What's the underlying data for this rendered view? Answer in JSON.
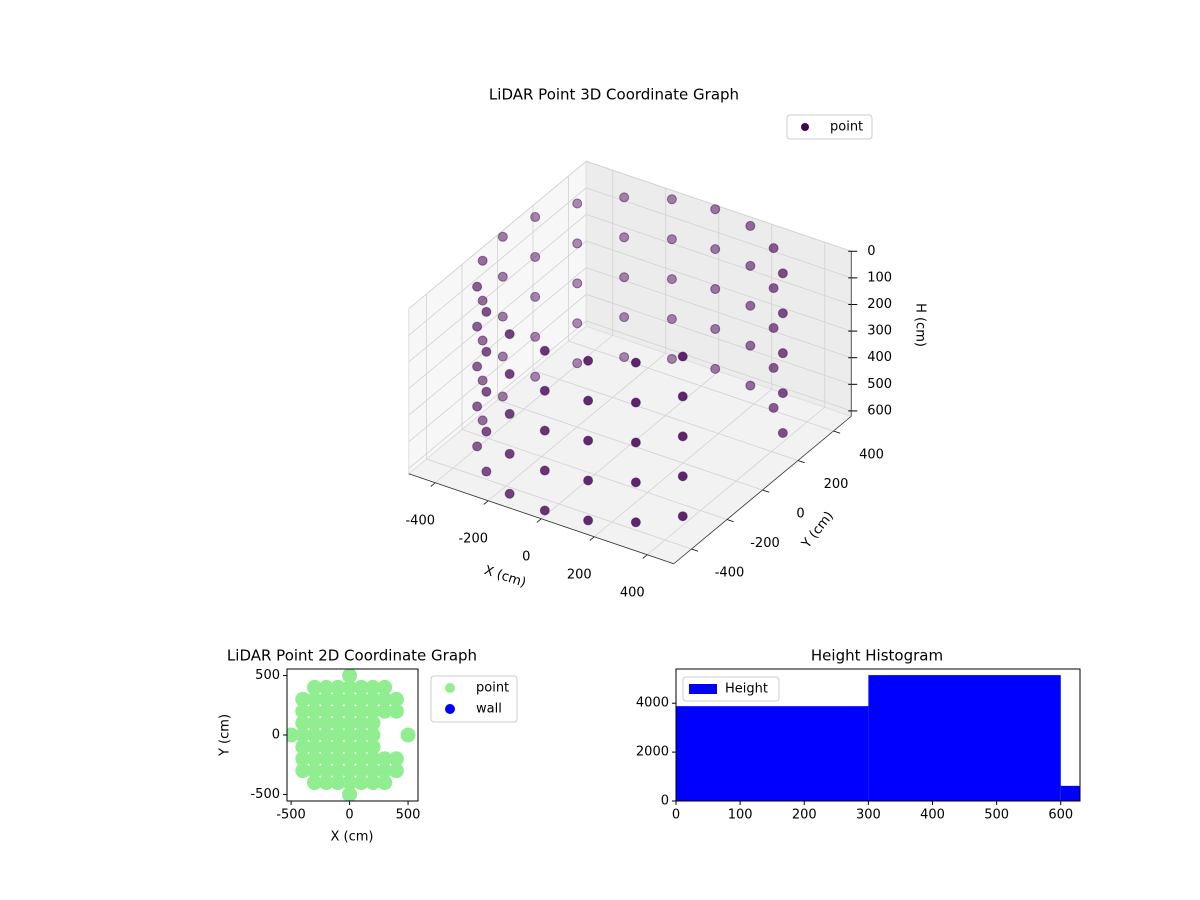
{
  "chart_data": [
    {
      "type": "scatter3d",
      "title": "LiDAR Point 3D Coordinate Graph",
      "xlabel": "X (cm)",
      "ylabel": "Y (cm)",
      "zlabel": "H (cm)",
      "series": [
        {
          "name": "point",
          "color": "#440154",
          "x": [
            388,
            282,
            148,
            0,
            -148,
            -282,
            -388,
            -457,
            -480,
            -457,
            -388,
            -282,
            -148,
            0,
            148,
            282,
            388,
            388,
            282,
            148,
            0,
            -148,
            -282,
            -388,
            -457,
            -480,
            -457,
            -388,
            -282,
            -148,
            0,
            148,
            282,
            388,
            388,
            282,
            148,
            0,
            -148,
            -282,
            -388,
            -457,
            -480,
            -457,
            -388,
            -282,
            -148,
            0,
            148,
            282,
            388,
            388,
            282,
            148,
            0,
            -148,
            -282,
            -388,
            -457,
            -480,
            -457,
            -388,
            -282,
            -148,
            0,
            148,
            282,
            388,
            388,
            282,
            148,
            0,
            -148,
            -282,
            -388,
            -457,
            -480,
            -457,
            -388,
            -282,
            -148,
            0,
            148,
            282,
            388
          ],
          "y": [
            282,
            388,
            457,
            480,
            457,
            388,
            282,
            148,
            0,
            -148,
            -282,
            -388,
            -457,
            -480,
            -457,
            -388,
            -282,
            282,
            388,
            457,
            480,
            457,
            388,
            282,
            148,
            0,
            -148,
            -282,
            -388,
            -457,
            -480,
            -457,
            -388,
            -282,
            282,
            388,
            457,
            480,
            457,
            388,
            282,
            148,
            0,
            -148,
            -282,
            -388,
            -457,
            -480,
            -457,
            -388,
            -282,
            282,
            388,
            457,
            480,
            457,
            388,
            282,
            148,
            0,
            -148,
            -282,
            -388,
            -457,
            -480,
            -457,
            -388,
            -282,
            282,
            388,
            457,
            480,
            457,
            388,
            282,
            148,
            0,
            -148,
            -282,
            -388,
            -457,
            -480,
            -457,
            -388,
            -282
          ],
          "z": [
            0,
            0,
            0,
            0,
            0,
            0,
            0,
            0,
            0,
            0,
            0,
            0,
            0,
            0,
            0,
            0,
            0,
            150,
            150,
            150,
            150,
            150,
            150,
            150,
            150,
            150,
            150,
            150,
            150,
            150,
            150,
            150,
            150,
            150,
            300,
            300,
            300,
            300,
            300,
            300,
            300,
            300,
            300,
            300,
            300,
            300,
            300,
            300,
            300,
            300,
            300,
            450,
            450,
            450,
            450,
            450,
            450,
            450,
            450,
            450,
            450,
            450,
            450,
            450,
            450,
            450,
            450,
            450,
            600,
            600,
            600,
            600,
            600,
            600,
            600,
            600,
            600,
            600,
            600,
            600,
            600,
            600,
            600,
            600,
            600
          ]
        }
      ],
      "xlim": [
        -500,
        500
      ],
      "ylim": [
        -500,
        500
      ],
      "zlim": [
        0,
        620
      ],
      "zinvert": true,
      "xticks": [
        -400,
        -200,
        0,
        200,
        400
      ],
      "yticks": [
        -400,
        -200,
        0,
        200,
        400
      ],
      "zticks": [
        0,
        100,
        200,
        300,
        400,
        500,
        600
      ],
      "grid": true,
      "legend": "upper right"
    },
    {
      "type": "scatter",
      "title": "LiDAR Point 2D Coordinate Graph",
      "xlabel": "X (cm)",
      "ylabel": "Y (cm)",
      "series": [
        {
          "name": "point",
          "color": "#90ee90",
          "x": [
            0,
            -300,
            -200,
            -100,
            0,
            100,
            200,
            300,
            -400,
            -300,
            -200,
            -100,
            0,
            100,
            200,
            300,
            400,
            -400,
            -300,
            -200,
            -100,
            0,
            100,
            200,
            300,
            400,
            -400,
            -300,
            -200,
            -100,
            0,
            100,
            200,
            -500,
            -400,
            -300,
            -200,
            -100,
            0,
            100,
            200,
            500,
            -400,
            -300,
            -200,
            -100,
            0,
            100,
            200,
            -400,
            -300,
            -200,
            -100,
            0,
            100,
            200,
            300,
            400,
            -400,
            -300,
            -200,
            -100,
            0,
            100,
            200,
            300,
            400,
            -300,
            -200,
            -100,
            0,
            100,
            200,
            300,
            0
          ],
          "y": [
            500,
            400,
            400,
            400,
            400,
            400,
            400,
            400,
            300,
            300,
            300,
            300,
            300,
            300,
            300,
            300,
            300,
            200,
            200,
            200,
            200,
            200,
            200,
            200,
            200,
            200,
            100,
            100,
            100,
            100,
            100,
            100,
            100,
            0,
            0,
            0,
            0,
            0,
            0,
            0,
            0,
            0,
            -100,
            -100,
            -100,
            -100,
            -100,
            -100,
            -100,
            -200,
            -200,
            -200,
            -200,
            -200,
            -200,
            -200,
            -200,
            -200,
            -300,
            -300,
            -300,
            -300,
            -300,
            -300,
            -300,
            -300,
            -300,
            -400,
            -400,
            -400,
            -400,
            -400,
            -400,
            -400,
            -500
          ]
        },
        {
          "name": "wall",
          "color": "#0000ff",
          "x": [],
          "y": []
        }
      ],
      "xlim": [
        -535,
        585
      ],
      "ylim": [
        -555,
        555
      ],
      "xticks": [
        -500,
        0,
        500
      ],
      "yticks": [
        -500,
        0,
        500
      ],
      "legend": "outside upper right"
    },
    {
      "type": "histogram",
      "title": "Height Histogram",
      "name": "Height",
      "color": "#0000ff",
      "bins": [
        0,
        300,
        600,
        630
      ],
      "counts": [
        3880,
        5150,
        620
      ],
      "xlim": [
        0,
        630
      ],
      "ylim": [
        0,
        5400
      ],
      "xticks": [
        0,
        100,
        200,
        300,
        400,
        500,
        600
      ],
      "yticks": [
        0,
        2000,
        4000
      ],
      "legend": "upper left"
    }
  ]
}
